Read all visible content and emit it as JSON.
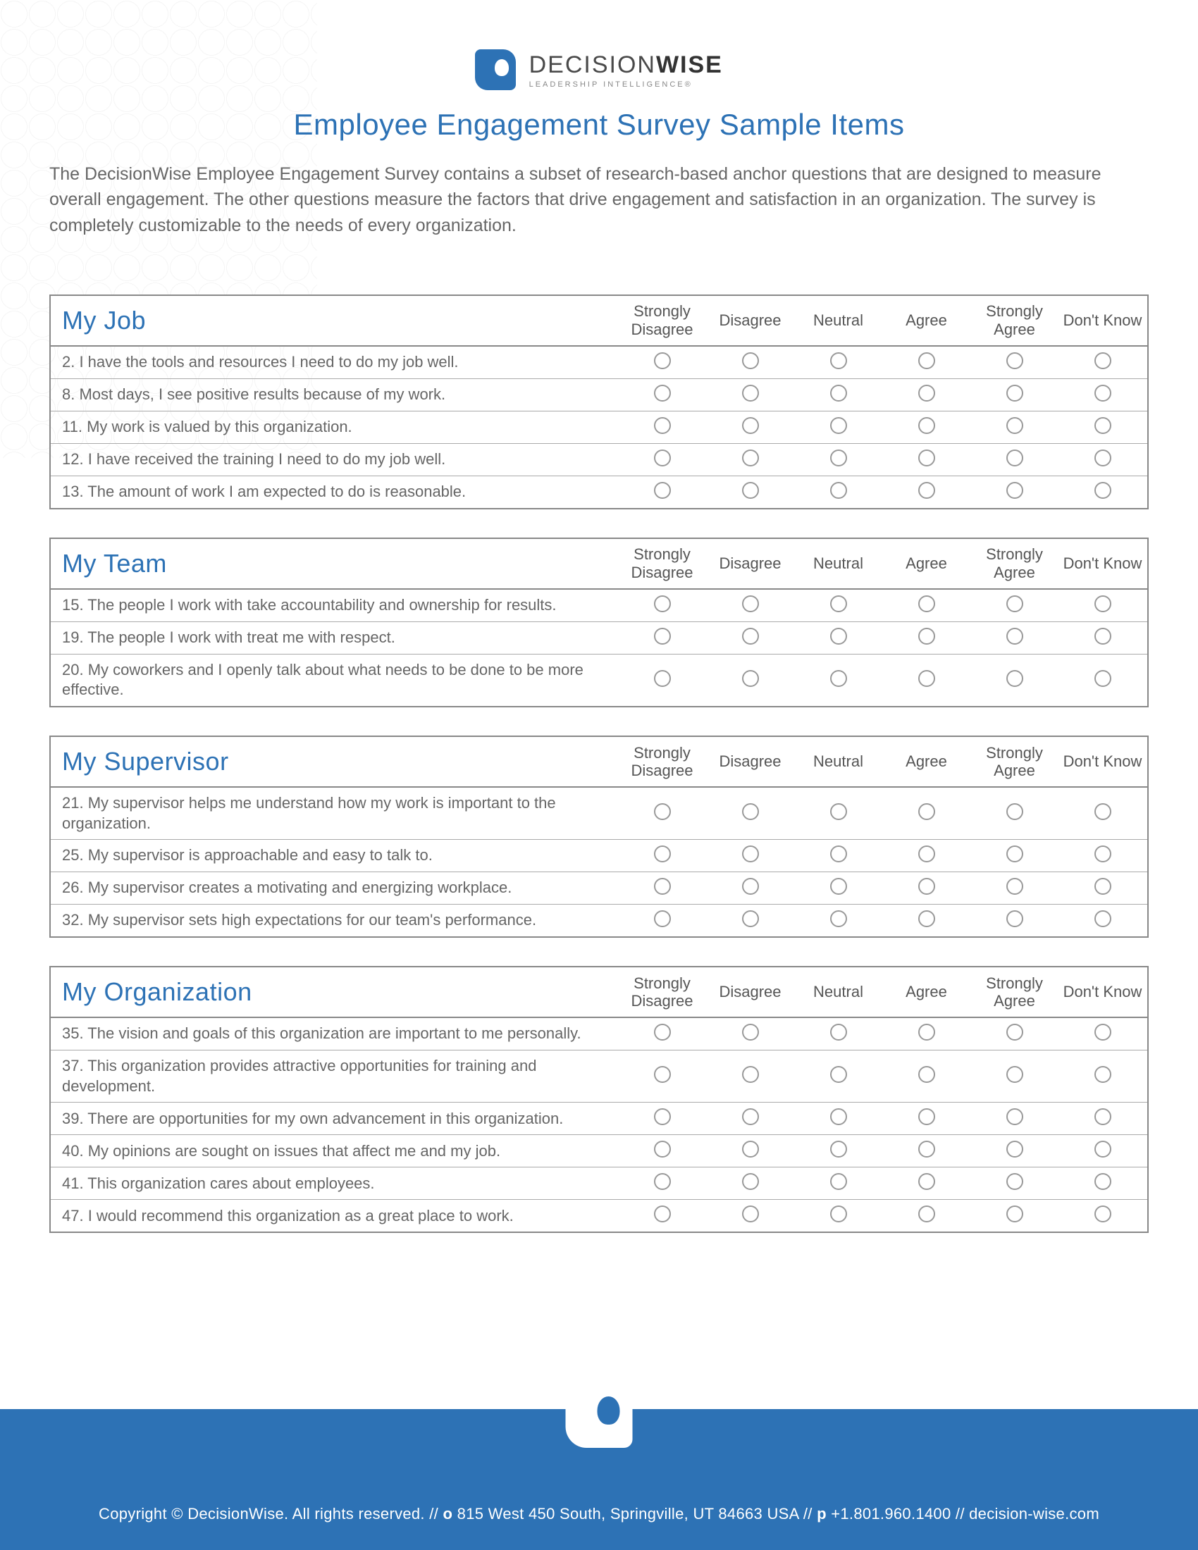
{
  "brand": {
    "name_light": "DECISION",
    "name_bold": "WISE",
    "tagline": "LEADERSHIP INTELLIGENCE®",
    "primary_color": "#2d72b5",
    "text_color": "#5a5a5a"
  },
  "title": "Employee Engagement Survey Sample Items",
  "intro": "The DecisionWise Employee Engagement Survey contains a subset of research-based anchor questions that are designed to measure overall engagement. The other questions measure the factors that drive engagement and satisfaction in an organization. The survey is completely customizable to the needs of every organization.",
  "scale_labels": [
    "Strongly Disagree",
    "Disagree",
    "Neutral",
    "Agree",
    "Strongly Agree",
    "Don't Know"
  ],
  "sections": [
    {
      "title": "My Job",
      "questions": [
        "2. I have the tools and resources I need to do my job well.",
        "8. Most days, I see positive results because of my work.",
        "11. My work is valued by this organization.",
        "12. I have received the training I need to do my job well.",
        "13. The amount of work I am expected to do is reasonable."
      ]
    },
    {
      "title": "My Team",
      "questions": [
        "15. The people I work with take accountability and ownership for results.",
        "19. The people I work with treat me with respect.",
        "20. My coworkers and I openly talk about what needs to be done to be more effective."
      ]
    },
    {
      "title": "My Supervisor",
      "questions": [
        "21. My supervisor helps me understand how my work is important to the organization.",
        "25. My supervisor is approachable and easy to talk to.",
        "26. My supervisor creates a motivating and energizing workplace.",
        "32. My supervisor sets high expectations for our team's performance."
      ]
    },
    {
      "title": "My Organization",
      "questions": [
        "35. The vision and goals of this organization are important to me personally.",
        "37. This organization provides attractive opportunities for training and development.",
        "39. There are opportunities for my own advancement in this organization.",
        "40. My opinions are sought on issues that affect me and my job.",
        "41. This organization cares about employees.",
        "47. I would recommend this organization as a great place to work."
      ]
    }
  ],
  "footer": {
    "copyright": "Copyright © DecisionWise. All rights reserved. // ",
    "addr_label": "o ",
    "address": "815 West 450 South, Springville, UT 84663 USA // ",
    "phone_label": "p ",
    "phone": "+1.801.960.1400 // decision-wise.com"
  }
}
